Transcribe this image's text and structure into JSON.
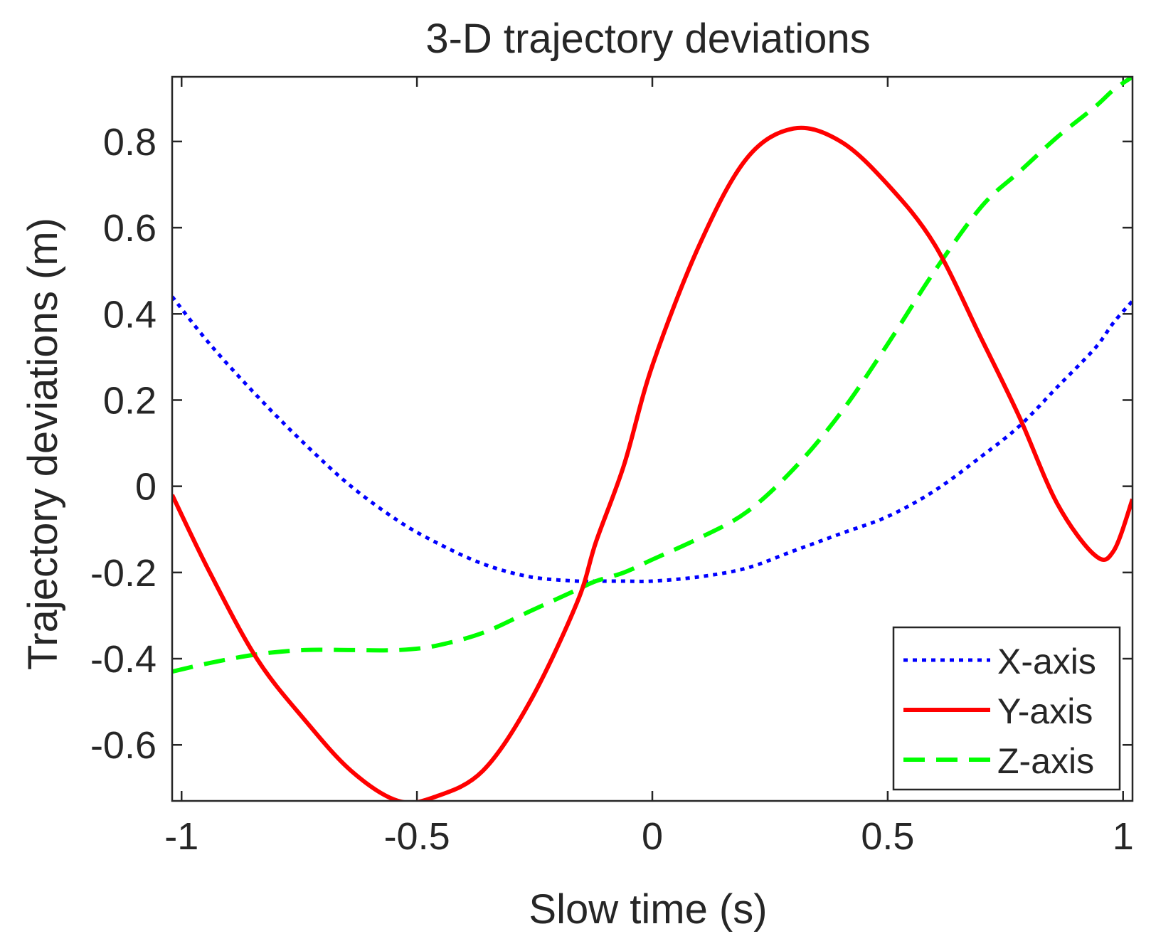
{
  "chart_data": {
    "type": "line",
    "title": "3-D trajectory deviations",
    "xlabel": "Slow time (s)",
    "ylabel": "Trajectory deviations (m)",
    "xlim": [
      -1.02,
      1.02
    ],
    "ylim": [
      -0.73,
      0.95
    ],
    "xticks": [
      -1,
      -0.5,
      0,
      0.5,
      1
    ],
    "xtick_labels": [
      "-1",
      "-0.5",
      "0",
      "0.5",
      "1"
    ],
    "yticks": [
      -0.6,
      -0.4,
      -0.2,
      0,
      0.2,
      0.4,
      0.6,
      0.8
    ],
    "ytick_labels": [
      "-0.6",
      "-0.4",
      "-0.2",
      "0",
      "0.2",
      "0.4",
      "0.6",
      "0.8"
    ],
    "grid": false,
    "legend_position": "bottom-right",
    "x": [
      -1.02,
      -0.94,
      -0.84,
      -0.74,
      -0.64,
      -0.54,
      -0.46,
      -0.36,
      -0.26,
      -0.16,
      -0.12,
      -0.06,
      0.0,
      0.1,
      0.2,
      0.3,
      0.4,
      0.5,
      0.6,
      0.7,
      0.78,
      0.86,
      0.94,
      0.98,
      1.02
    ],
    "series": [
      {
        "name": "X-axis",
        "style": "dotted",
        "color": "#0000ff",
        "values": [
          0.44,
          0.33,
          0.21,
          0.1,
          0.0,
          -0.08,
          -0.13,
          -0.18,
          -0.21,
          -0.22,
          -0.22,
          -0.22,
          -0.22,
          -0.21,
          -0.19,
          -0.15,
          -0.11,
          -0.07,
          -0.01,
          0.07,
          0.14,
          0.23,
          0.32,
          0.38,
          0.43
        ]
      },
      {
        "name": "Y-axis",
        "style": "solid",
        "color": "#ff0000",
        "values": [
          -0.02,
          -0.2,
          -0.4,
          -0.54,
          -0.66,
          -0.73,
          -0.72,
          -0.66,
          -0.5,
          -0.27,
          -0.13,
          0.05,
          0.28,
          0.56,
          0.76,
          0.83,
          0.8,
          0.7,
          0.56,
          0.34,
          0.16,
          -0.04,
          -0.16,
          -0.15,
          -0.03
        ]
      },
      {
        "name": "Z-axis",
        "style": "dashed",
        "color": "#00ff00",
        "values": [
          -0.43,
          -0.41,
          -0.39,
          -0.38,
          -0.38,
          -0.38,
          -0.37,
          -0.34,
          -0.29,
          -0.24,
          -0.22,
          -0.2,
          -0.17,
          -0.12,
          -0.06,
          0.04,
          0.17,
          0.33,
          0.5,
          0.65,
          0.73,
          0.81,
          0.88,
          0.92,
          0.95
        ]
      }
    ]
  }
}
